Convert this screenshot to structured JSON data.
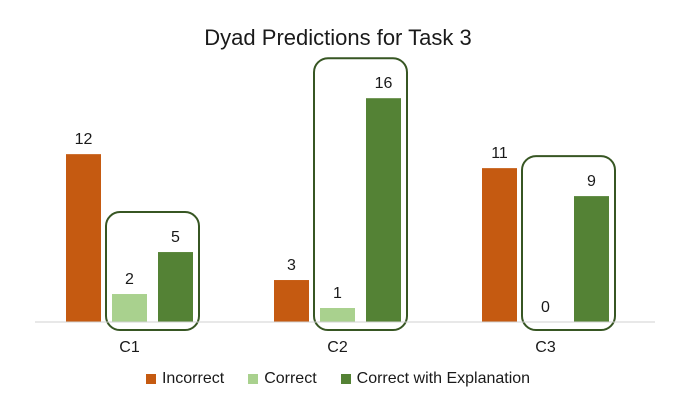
{
  "chart_data": {
    "type": "bar",
    "title": "Dyad Predictions for Task 3",
    "categories": [
      "C1",
      "C2",
      "C3"
    ],
    "series": [
      {
        "name": "Incorrect",
        "values": [
          12,
          3,
          11
        ],
        "color": "#C55A11"
      },
      {
        "name": "Correct",
        "values": [
          2,
          1,
          0
        ],
        "color": "#A9D18E"
      },
      {
        "name": "Correct with Explanation",
        "values": [
          5,
          16,
          9
        ],
        "color": "#548235"
      }
    ],
    "highlight_boxes": [
      {
        "category": "C1",
        "series": [
          "Correct",
          "Correct with Explanation"
        ]
      },
      {
        "category": "C2",
        "series": [
          "Correct",
          "Correct with Explanation"
        ]
      },
      {
        "category": "C3",
        "series": [
          "Correct",
          "Correct with Explanation"
        ]
      }
    ],
    "highlight_color": "#375623",
    "ylim": [
      0,
      18
    ],
    "grid": false,
    "legend_position": "bottom"
  }
}
